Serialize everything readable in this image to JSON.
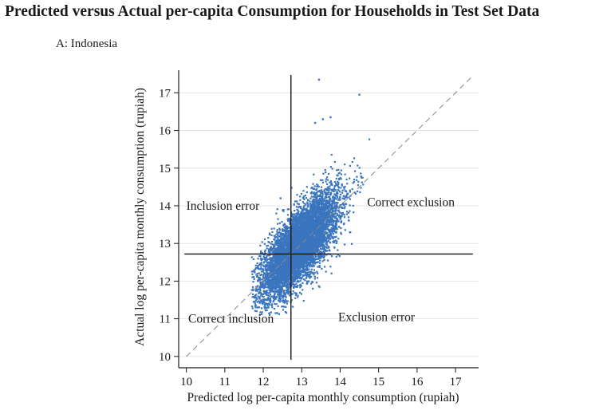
{
  "figure": {
    "title": "Predicted versus Actual per-capita Consumption for Households in Test Set Data",
    "panel_label": "A: Indonesia"
  },
  "colors": {
    "points": "#3a75be",
    "axis": "#1a1a1a",
    "grid": "#e4e4e4",
    "diagonal": "#888888",
    "threshold": "#111111"
  },
  "chart_data": {
    "type": "scatter",
    "title": "",
    "xlabel": "Predicted log per-capita monthly consumption (rupiah)",
    "ylabel": "Actual log per-capita monthly consumption (rupiah)",
    "xlim": [
      9.8,
      17.6
    ],
    "ylim": [
      9.7,
      17.6
    ],
    "xticks": [
      10,
      11,
      12,
      13,
      14,
      15,
      16,
      17
    ],
    "yticks": [
      10,
      11,
      12,
      13,
      14,
      15,
      16,
      17
    ],
    "grid": "horizontal",
    "reference_line": "y = x (dashed)",
    "thresholds": {
      "predicted": 12.72,
      "actual": 12.72
    },
    "cloud": {
      "count": 7000,
      "x_mean": 12.95,
      "x_sd": 0.5,
      "y_slope": 1.0,
      "y_intercept": 0.0,
      "y_residual_sd": 0.46,
      "x_range": [
        11.7,
        14.8
      ],
      "y_range": [
        11.1,
        16.1
      ]
    },
    "outliers": [
      {
        "x": 13.45,
        "y": 17.35
      },
      {
        "x": 14.5,
        "y": 16.95
      },
      {
        "x": 13.75,
        "y": 16.35
      },
      {
        "x": 13.55,
        "y": 16.3
      },
      {
        "x": 13.35,
        "y": 16.2
      },
      {
        "x": 12.45,
        "y": 14.2
      },
      {
        "x": 11.75,
        "y": 11.45
      },
      {
        "x": 11.85,
        "y": 11.3
      }
    ],
    "annotations": [
      {
        "text": "Inclusion error",
        "x": 10.0,
        "y": 14.0,
        "anchor": "start"
      },
      {
        "text": "Correct exclusion",
        "x": 14.7,
        "y": 14.1,
        "anchor": "start"
      },
      {
        "text": "Correct inclusion",
        "x": 10.05,
        "y": 11.0,
        "anchor": "start"
      },
      {
        "text": "Exclusion error",
        "x": 13.95,
        "y": 11.05,
        "anchor": "start"
      }
    ]
  }
}
